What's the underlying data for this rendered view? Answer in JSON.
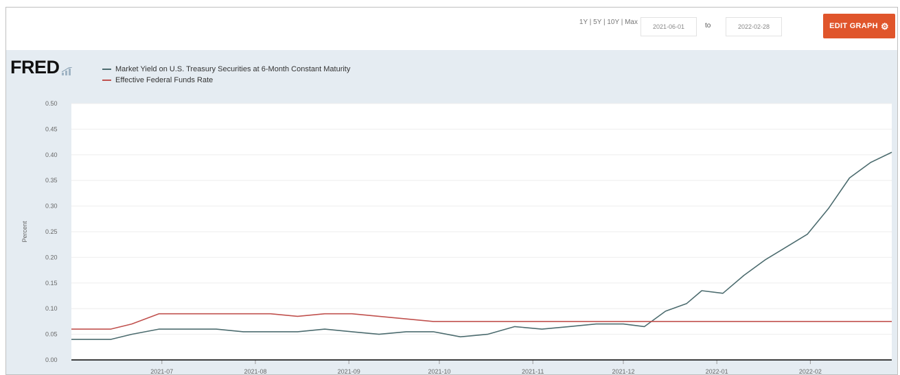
{
  "header": {
    "range_link": "1Y | 5Y | 10Y | Max",
    "start_date": "2021-06-01",
    "to_label": "to",
    "end_date": "2022-02-28",
    "edit_button": "EDIT GRAPH",
    "edit_icon": "gear-icon"
  },
  "logo": {
    "text": "FRED",
    "icon": "chart-line-icon"
  },
  "colors": {
    "accent": "#e0552b",
    "series_1": "#4b6b6e",
    "series_2": "#c0504d",
    "plot_bg": "#ffffff",
    "graph_bg": "#e5ecf2",
    "axis_line": "#000000"
  },
  "chart_data": {
    "type": "line",
    "title": "",
    "xlabel": "",
    "ylabel": "Percent",
    "ylim": [
      0,
      0.5
    ],
    "yticks": [
      0,
      0.05,
      0.1,
      0.15,
      0.2,
      0.25,
      0.3,
      0.35,
      0.4,
      0.45,
      0.5
    ],
    "ytick_labels": [
      "0.00",
      "0.05",
      "0.10",
      "0.15",
      "0.20",
      "0.25",
      "0.30",
      "0.35",
      "0.40",
      "0.45",
      "0.50"
    ],
    "x_range": [
      "2021-06-01",
      "2022-02-28"
    ],
    "xticks": [
      "2021-07-01",
      "2021-08-01",
      "2021-09-01",
      "2021-10-01",
      "2021-11-01",
      "2021-12-01",
      "2022-01-01",
      "2022-02-01"
    ],
    "xtick_labels": [
      "2021-07",
      "2021-08",
      "2021-09",
      "2021-10",
      "2021-11",
      "2021-12",
      "2022-01",
      "2022-02"
    ],
    "grid": true,
    "legend": "top-left",
    "series": [
      {
        "name": "Market Yield on U.S. Treasury Securities at 6-Month Constant Maturity",
        "color": "#4b6b6e",
        "x": [
          "2021-06-01",
          "2021-06-08",
          "2021-06-14",
          "2021-06-21",
          "2021-06-30",
          "2021-07-09",
          "2021-07-19",
          "2021-07-28",
          "2021-08-06",
          "2021-08-15",
          "2021-08-24",
          "2021-09-02",
          "2021-09-11",
          "2021-09-20",
          "2021-09-29",
          "2021-10-08",
          "2021-10-17",
          "2021-10-26",
          "2021-11-04",
          "2021-11-13",
          "2021-11-22",
          "2021-12-01",
          "2021-12-08",
          "2021-12-15",
          "2021-12-22",
          "2021-12-27",
          "2022-01-03",
          "2022-01-10",
          "2022-01-17",
          "2022-01-24",
          "2022-01-31",
          "2022-02-07",
          "2022-02-14",
          "2022-02-21",
          "2022-02-28"
        ],
        "values": [
          0.04,
          0.04,
          0.04,
          0.05,
          0.06,
          0.06,
          0.06,
          0.055,
          0.055,
          0.055,
          0.06,
          0.055,
          0.05,
          0.055,
          0.055,
          0.045,
          0.05,
          0.065,
          0.06,
          0.065,
          0.07,
          0.07,
          0.065,
          0.095,
          0.11,
          0.135,
          0.13,
          0.165,
          0.195,
          0.22,
          0.245,
          0.295,
          0.355,
          0.385,
          0.405
        ]
      },
      {
        "name": "Effective Federal Funds Rate",
        "color": "#c0504d",
        "x": [
          "2021-06-01",
          "2021-06-08",
          "2021-06-14",
          "2021-06-21",
          "2021-06-30",
          "2021-07-09",
          "2021-07-19",
          "2021-07-28",
          "2021-08-06",
          "2021-08-15",
          "2021-08-24",
          "2021-09-02",
          "2021-09-11",
          "2021-09-20",
          "2021-09-29",
          "2021-10-08",
          "2021-10-17",
          "2021-10-26",
          "2021-11-04",
          "2021-11-13",
          "2021-11-22",
          "2021-12-01",
          "2021-12-08",
          "2021-12-15",
          "2021-12-22",
          "2021-12-27",
          "2022-01-03",
          "2022-01-10",
          "2022-01-17",
          "2022-01-24",
          "2022-01-31",
          "2022-02-07",
          "2022-02-14",
          "2022-02-21",
          "2022-02-28"
        ],
        "values": [
          0.06,
          0.06,
          0.06,
          0.07,
          0.09,
          0.09,
          0.09,
          0.09,
          0.09,
          0.085,
          0.09,
          0.09,
          0.085,
          0.08,
          0.075,
          0.075,
          0.075,
          0.075,
          0.075,
          0.075,
          0.075,
          0.075,
          0.075,
          0.075,
          0.075,
          0.075,
          0.075,
          0.075,
          0.075,
          0.075,
          0.075,
          0.075,
          0.075,
          0.075,
          0.075
        ]
      }
    ]
  }
}
